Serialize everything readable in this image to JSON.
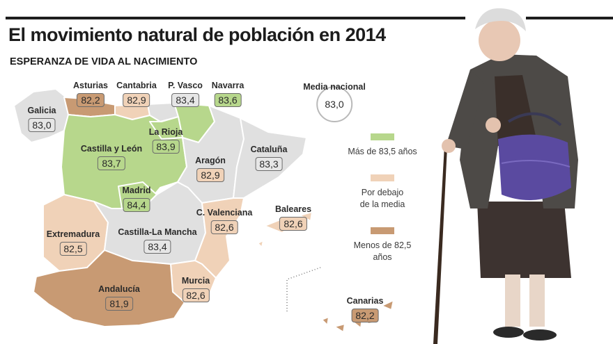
{
  "header": {
    "title": "El movimiento natural de población en 2014",
    "subtitle": "ESPERANZA DE VIDA AL NACIMIENTO"
  },
  "colors": {
    "green": "#b7d78c",
    "tan": "#f0d2b8",
    "brown": "#c89a73",
    "grey": "#e6e6e6"
  },
  "national": {
    "label": "Media nacional",
    "value": "83,0"
  },
  "regions": {
    "galicia": {
      "name": "Galicia",
      "value": "83,0",
      "category": "grey"
    },
    "asturias": {
      "name": "Asturias",
      "value": "82,2",
      "category": "brown"
    },
    "cantabria": {
      "name": "Cantabria",
      "value": "82,9",
      "category": "tan"
    },
    "pvasco": {
      "name": "P. Vasco",
      "value": "83,4",
      "category": "grey"
    },
    "navarra": {
      "name": "Navarra",
      "value": "83,6",
      "category": "green"
    },
    "larioja": {
      "name": "La Rioja",
      "value": "83,9",
      "category": "green"
    },
    "castillaleon": {
      "name": "Castilla y León",
      "value": "83,7",
      "category": "green"
    },
    "aragon": {
      "name": "Aragón",
      "value": "82,9",
      "category": "tan"
    },
    "cataluna": {
      "name": "Cataluña",
      "value": "83,3",
      "category": "grey"
    },
    "madrid": {
      "name": "Madrid",
      "value": "84,4",
      "category": "green"
    },
    "cvalenciana": {
      "name": "C. Valenciana",
      "value": "82,6",
      "category": "tan"
    },
    "baleares": {
      "name": "Baleares",
      "value": "82,6",
      "category": "tan"
    },
    "extremadura": {
      "name": "Extremadura",
      "value": "82,5",
      "category": "tan"
    },
    "castillamancha": {
      "name": "Castilla-La Mancha",
      "value": "83,4",
      "category": "grey"
    },
    "murcia": {
      "name": "Murcia",
      "value": "82,6",
      "category": "tan"
    },
    "andalucia": {
      "name": "Andalucía",
      "value": "81,9",
      "category": "brown"
    },
    "canarias": {
      "name": "Canarias",
      "value": "82,2",
      "category": "brown"
    }
  },
  "legend": {
    "more": "Más de 83,5 años",
    "below": "Por debajo de la media",
    "less": "Menos de 82,5 años"
  }
}
